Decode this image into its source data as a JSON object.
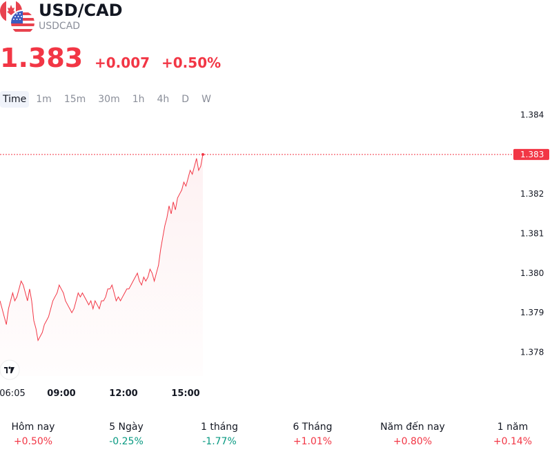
{
  "header": {
    "title": "USD/CAD",
    "subtitle": "USDCAD",
    "price": "1.383",
    "change": "+0.007",
    "change_pct": "+0.50%",
    "accent_color": "#f23645"
  },
  "intervals": [
    "Time",
    "1m",
    "15m",
    "30m",
    "1h",
    "4h",
    "D",
    "W"
  ],
  "active_interval": "Time",
  "chart_data": {
    "type": "line",
    "x_tick_labels": [
      "06:05",
      "09:00",
      "12:00",
      "15:00"
    ],
    "y_tick_labels": [
      "1.384",
      "1.383",
      "1.382",
      "1.381",
      "1.380",
      "1.379",
      "1.378"
    ],
    "ylim": [
      1.3774,
      1.3842
    ],
    "last_price_label": "1.383",
    "last_price": 1.383,
    "line_color": "#f23645",
    "grid": false,
    "series": [
      {
        "x": [
          0,
          1,
          2,
          3,
          4,
          5,
          6,
          7,
          8,
          9,
          10,
          11,
          12,
          13,
          14,
          15,
          16,
          17,
          18,
          19,
          20,
          21,
          22,
          23,
          24,
          25,
          26,
          27,
          28,
          29,
          30,
          31,
          32,
          33,
          34,
          35,
          36,
          37,
          38,
          39,
          40,
          41,
          42,
          43,
          44,
          45,
          46,
          47,
          48,
          49,
          50,
          51,
          52,
          53,
          54,
          55,
          56,
          57,
          58,
          59,
          60,
          61,
          62,
          63,
          64,
          65,
          66,
          67,
          68,
          69,
          70,
          71,
          72,
          73,
          74,
          75,
          76,
          77,
          78,
          79,
          80,
          81,
          82,
          83,
          84,
          85,
          86,
          87,
          88,
          89,
          90,
          91,
          92,
          93,
          94,
          95,
          96
        ],
        "values": [
          1.3793,
          1.3791,
          1.3789,
          1.3787,
          1.3791,
          1.3793,
          1.3795,
          1.3793,
          1.3794,
          1.3796,
          1.3798,
          1.3797,
          1.3795,
          1.3793,
          1.3796,
          1.3793,
          1.3788,
          1.3786,
          1.3783,
          1.3784,
          1.3785,
          1.3787,
          1.3788,
          1.3789,
          1.3791,
          1.3793,
          1.3794,
          1.3795,
          1.3797,
          1.3796,
          1.3795,
          1.3793,
          1.3792,
          1.3791,
          1.379,
          1.3791,
          1.3793,
          1.3795,
          1.3794,
          1.3795,
          1.3794,
          1.3793,
          1.3792,
          1.3793,
          1.3791,
          1.3793,
          1.3792,
          1.3791,
          1.3793,
          1.3793,
          1.3794,
          1.3796,
          1.3796,
          1.3797,
          1.3795,
          1.3793,
          1.3794,
          1.3793,
          1.3794,
          1.3795,
          1.3796,
          1.3796,
          1.3797,
          1.3798,
          1.3799,
          1.38,
          1.3798,
          1.3797,
          1.3799,
          1.3798,
          1.3799,
          1.3801,
          1.38,
          1.3798,
          1.38,
          1.3802,
          1.3806,
          1.3809,
          1.3812,
          1.3814,
          1.3817,
          1.3815,
          1.3818,
          1.3816,
          1.3819,
          1.382,
          1.3821,
          1.3823,
          1.3822,
          1.3824,
          1.3826,
          1.3825,
          1.3827,
          1.3829,
          1.3826,
          1.3827,
          1.383
        ]
      }
    ]
  },
  "periods": [
    {
      "label": "Hôm nay",
      "value": "+0.50%",
      "trend": "pos"
    },
    {
      "label": "5 Ngày",
      "value": "-0.25%",
      "trend": "neg"
    },
    {
      "label": "1 tháng",
      "value": "-1.77%",
      "trend": "neg"
    },
    {
      "label": "6 Tháng",
      "value": "+1.01%",
      "trend": "pos"
    },
    {
      "label": "Năm đến nay",
      "value": "+0.80%",
      "trend": "pos"
    },
    {
      "label": "1 năm",
      "value": "+0.14%",
      "trend": "pos"
    }
  ],
  "colors": {
    "up": "#f23645",
    "down": "#089981"
  }
}
